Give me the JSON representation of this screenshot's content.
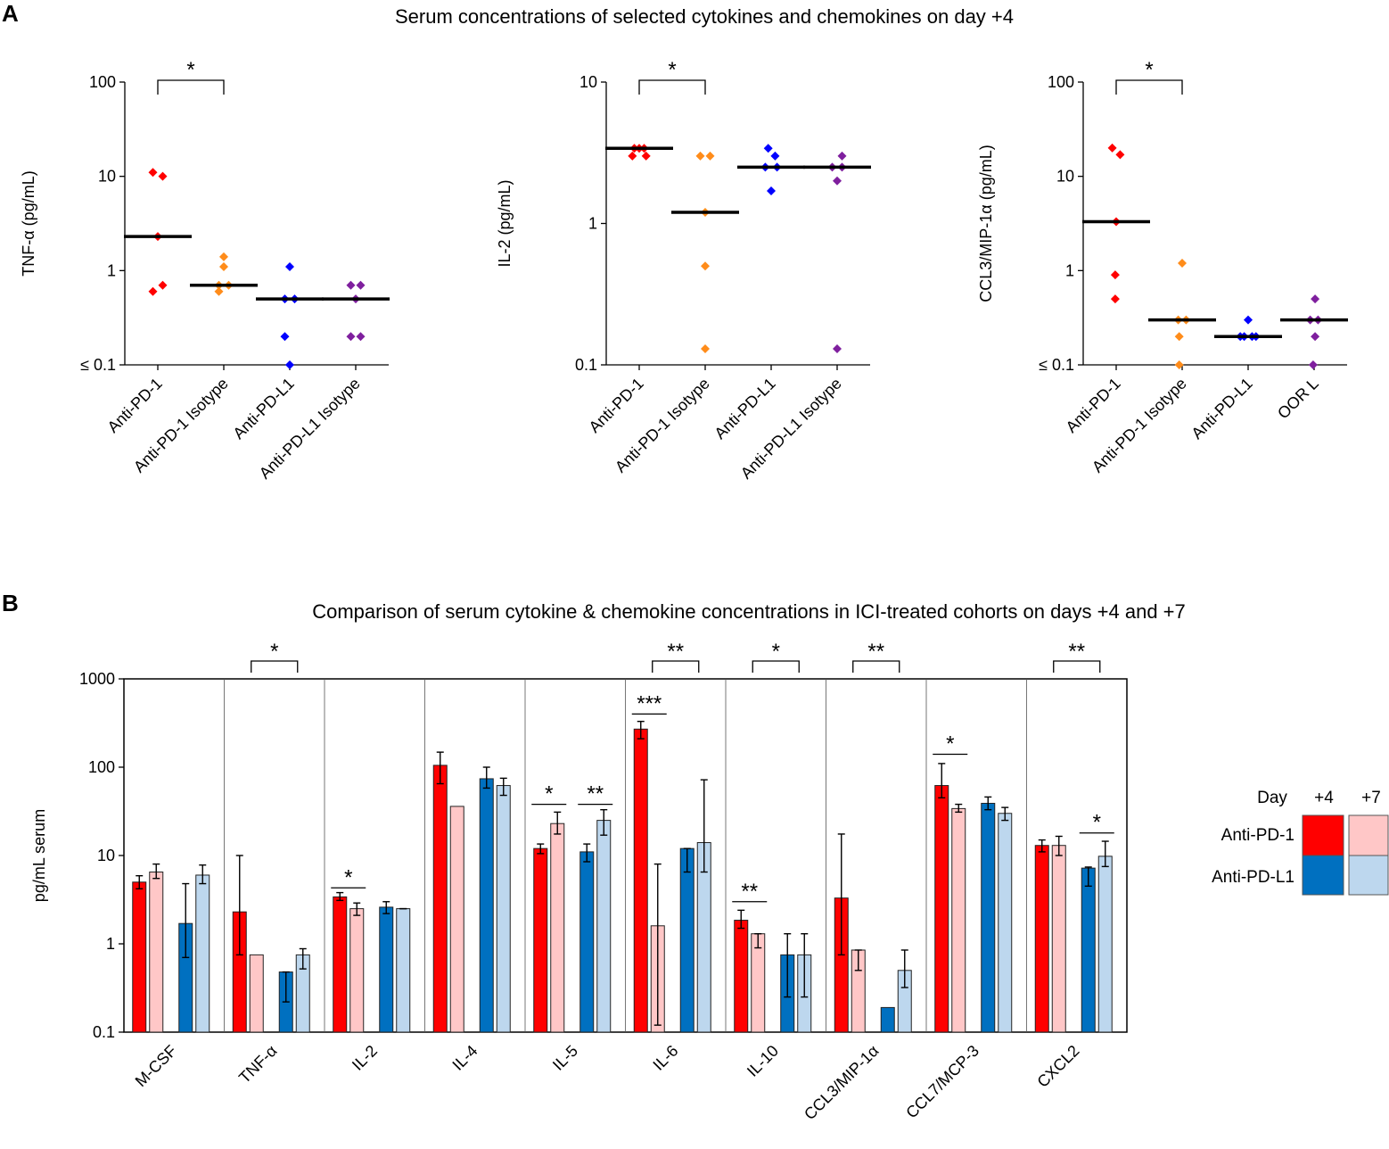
{
  "panel_a": {
    "letter": "A",
    "title": "Serum concentrations of selected cytokines and chemokines on day +4"
  },
  "panel_b": {
    "letter": "B",
    "title": "Comparison of serum cytokine & chemokine concentrations in ICI-treated  cohorts on days +4 and +7"
  },
  "legend": {
    "header_day": "Day",
    "header_d4": "+4",
    "header_d7": "+7",
    "row1": "Anti-PD-1",
    "row2": "Anti-PD-L1",
    "colors": {
      "pd1_d4": "#ff0000",
      "pd1_d7": "#ffc7c7",
      "pdl1_d4": "#0070c0",
      "pdl1_d7": "#bdd7ee"
    }
  },
  "chart_data": [
    {
      "type": "scatter",
      "title": "Serum concentrations of selected cytokines and chemokines on day +4",
      "ylabel": "TNF-α  (pg/mL)",
      "yscale": "log",
      "ylim": [
        0.1,
        100
      ],
      "ytick_labels": [
        "≤ 0.1",
        "1",
        "10",
        "100"
      ],
      "ytick_values": [
        0.1,
        1,
        10,
        100
      ],
      "categories": [
        "Anti-PD-1",
        "Anti-PD-1 Isotype",
        "Anti-PD-L1",
        "Anti-PD-L1 Isotype"
      ],
      "colors": [
        "#ff0000",
        "#ff8c1a",
        "#0000ff",
        "#7f1f9e"
      ],
      "points": [
        [
          11,
          10,
          2.3,
          0.7,
          0.6
        ],
        [
          1.4,
          1.1,
          0.7,
          0.7,
          0.6
        ],
        [
          1.1,
          0.5,
          0.5,
          0.2,
          0.1
        ],
        [
          0.7,
          0.7,
          0.5,
          0.2,
          0.2
        ]
      ],
      "offsets": [
        [
          -0.5,
          0.5,
          0,
          0.5,
          -0.5
        ],
        [
          0,
          0,
          0.5,
          -0.5,
          -0.5
        ],
        [
          0,
          -0.5,
          0.5,
          -0.5,
          0
        ],
        [
          -0.5,
          0.5,
          0,
          -0.5,
          0.5
        ]
      ],
      "medians": [
        2.3,
        0.7,
        0.5,
        0.5
      ],
      "significance": [
        {
          "from": 0,
          "to": 1,
          "label": "*"
        }
      ]
    },
    {
      "type": "scatter",
      "ylabel": "IL-2 (pg/mL)",
      "yscale": "log",
      "ylim": [
        0.1,
        10
      ],
      "ytick_labels": [
        "0.1",
        "1",
        "10"
      ],
      "ytick_values": [
        0.1,
        1,
        10
      ],
      "categories": [
        "Anti-PD-1",
        "Anti-PD-1 Isotype",
        "Anti-PD-L1",
        "Anti-PD-L1 Isotype"
      ],
      "colors": [
        "#ff0000",
        "#ff8c1a",
        "#0000ff",
        "#7f1f9e"
      ],
      "points": [
        [
          3.4,
          3.4,
          3.4,
          3.0,
          3.0
        ],
        [
          3.0,
          3.0,
          1.2,
          0.5,
          0.13
        ],
        [
          3.4,
          3.0,
          2.5,
          2.5,
          1.7
        ],
        [
          3.0,
          2.5,
          2.5,
          2.0,
          0.13
        ]
      ],
      "offsets": [
        [
          -0.5,
          0,
          0.5,
          -0.7,
          0.7
        ],
        [
          -0.5,
          0.5,
          0,
          0,
          0
        ],
        [
          -0.3,
          0.4,
          -0.6,
          0.6,
          0
        ],
        [
          0.5,
          -0.5,
          0.5,
          0,
          0
        ]
      ],
      "medians": [
        3.4,
        1.2,
        2.5,
        2.5
      ],
      "significance": [
        {
          "from": 0,
          "to": 1,
          "label": "*"
        }
      ]
    },
    {
      "type": "scatter",
      "ylabel": "CCL3/MIP-1α (pg/mL)",
      "yscale": "log",
      "ylim": [
        0.1,
        100
      ],
      "ytick_labels": [
        "≤ 0.1",
        "1",
        "10",
        "100"
      ],
      "ytick_values": [
        0.1,
        1,
        10,
        100
      ],
      "categories": [
        "Anti-PD-1",
        "Anti-PD-1 Isotype",
        "Anti-PD-L1",
        "OOR L"
      ],
      "colors": [
        "#ff0000",
        "#ff8c1a",
        "#0000ff",
        "#7f1f9e"
      ],
      "points": [
        [
          20,
          17,
          3.3,
          0.9,
          0.5
        ],
        [
          1.2,
          0.3,
          0.3,
          0.2,
          0.1
        ],
        [
          0.3,
          0.2,
          0.2,
          0.2,
          0.2
        ],
        [
          0.5,
          0.3,
          0.3,
          0.2,
          0.1
        ]
      ],
      "offsets": [
        [
          -0.4,
          0.4,
          0,
          -0.1,
          -0.1
        ],
        [
          0,
          -0.4,
          0.4,
          -0.3,
          -0.3
        ],
        [
          0,
          -0.8,
          -0.4,
          0.4,
          0.8
        ],
        [
          0.1,
          -0.4,
          0.4,
          0.1,
          -0.1
        ]
      ],
      "medians": [
        3.3,
        0.3,
        0.2,
        0.3
      ],
      "significance": [
        {
          "from": 0,
          "to": 1,
          "label": "*"
        }
      ]
    },
    {
      "type": "bar",
      "title": "Comparison of serum cytokine & chemokine concentrations in ICI-treated  cohorts on days +4 and +7",
      "ylabel": "pg/mL  serum",
      "yscale": "log",
      "ylim": [
        0.1,
        1000
      ],
      "ytick_labels": [
        "0.1",
        "1",
        "10",
        "100",
        "1000"
      ],
      "ytick_values": [
        0.1,
        1,
        10,
        100,
        1000
      ],
      "categories": [
        "M-CSF",
        "TNF-α",
        "IL-2",
        "IL-4",
        "IL-5",
        "IL-6",
        "IL-10",
        "CCL3/MIP-1α",
        "CCL7/MCP-3",
        "CXCL2"
      ],
      "series": [
        {
          "name": "Anti-PD-1 Day +4",
          "color": "#ff0000",
          "values": [
            5.0,
            2.3,
            3.4,
            105,
            12,
            270,
            1.85,
            3.3,
            62,
            13
          ],
          "err_low": [
            4.2,
            0.75,
            3.1,
            65,
            10.5,
            210,
            1.5,
            0.75,
            45,
            11
          ],
          "err_high": [
            5.9,
            10,
            3.8,
            148,
            13.5,
            330,
            2.4,
            17.5,
            110,
            15
          ]
        },
        {
          "name": "Anti-PD-1 Day +7",
          "color": "#ffc7c7",
          "values": [
            6.5,
            0.75,
            2.5,
            36,
            23,
            1.6,
            1.3,
            0.85,
            34,
            13
          ],
          "err_low": [
            5.5,
            null,
            2.1,
            null,
            17.5,
            0.12,
            0.9,
            0.5,
            31,
            10
          ],
          "err_high": [
            8.0,
            null,
            2.9,
            null,
            31,
            8.0,
            1.3,
            0.85,
            38,
            16.5
          ]
        },
        {
          "name": "Anti-PD-L1 Day +4",
          "color": "#0070c0",
          "values": [
            1.7,
            0.48,
            2.6,
            74,
            11,
            12,
            0.75,
            0.19,
            39,
            7.2
          ],
          "err_low": [
            0.7,
            0.22,
            2.2,
            58,
            8.5,
            6.5,
            0.25,
            null,
            33,
            4.5
          ],
          "err_high": [
            4.8,
            0.48,
            3.0,
            100,
            13.5,
            12,
            1.3,
            null,
            46,
            7.4
          ]
        },
        {
          "name": "Anti-PD-L1 Day +7",
          "color": "#bdd7ee",
          "values": [
            6.0,
            0.75,
            2.5,
            62,
            25,
            14,
            0.75,
            0.5,
            30,
            9.8
          ],
          "err_low": [
            4.8,
            0.52,
            2.5,
            48,
            17,
            6.5,
            0.25,
            0.32,
            25,
            7.5
          ],
          "err_high": [
            7.8,
            0.88,
            2.5,
            75,
            33,
            72,
            1.3,
            0.85,
            35,
            14.5
          ]
        }
      ],
      "significance_top": [
        {
          "category": 1,
          "label": "*"
        },
        {
          "category": 5,
          "label": "**"
        },
        {
          "category": 6,
          "label": "*"
        },
        {
          "category": 7,
          "label": "**"
        },
        {
          "category": 9,
          "label": "**"
        }
      ],
      "significance_inner": [
        {
          "category": 2,
          "pair": "pd1",
          "level": 4.3,
          "label": "*"
        },
        {
          "category": 4,
          "pair": "pd1",
          "level": 38,
          "label": "*"
        },
        {
          "category": 4,
          "pair": "pdl1",
          "level": 38,
          "label": "**"
        },
        {
          "category": 5,
          "pair": "pd1",
          "level": 400,
          "label": "***"
        },
        {
          "category": 6,
          "pair": "pd1",
          "level": 3.0,
          "label": "**"
        },
        {
          "category": 8,
          "pair": "pd1",
          "level": 140,
          "label": "*"
        },
        {
          "category": 9,
          "pair": "pdl1",
          "level": 18,
          "label": "*"
        }
      ],
      "legend_position": "right"
    }
  ]
}
